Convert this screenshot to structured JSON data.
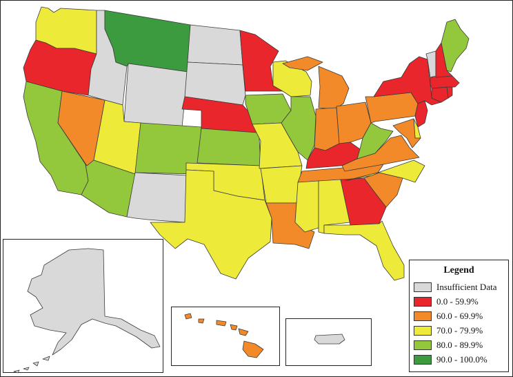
{
  "legend": {
    "title": "Legend",
    "items": [
      {
        "label": "Insufficient Data",
        "color": "#d9d9d9"
      },
      {
        "label": "0.0 - 59.9%",
        "color": "#e8262b"
      },
      {
        "label": "60.0 - 69.9%",
        "color": "#f28a2a"
      },
      {
        "label": "70.0 - 79.9%",
        "color": "#eeea3a"
      },
      {
        "label": "80.0 - 89.9%",
        "color": "#94c83c"
      },
      {
        "label": "90.0 - 100.0%",
        "color": "#3d9b3f"
      }
    ]
  },
  "states": [
    {
      "id": "WA",
      "cat": 3
    },
    {
      "id": "OR",
      "cat": 1
    },
    {
      "id": "CA",
      "cat": 4
    },
    {
      "id": "NV",
      "cat": 2
    },
    {
      "id": "ID",
      "cat": 0
    },
    {
      "id": "MT",
      "cat": 5
    },
    {
      "id": "WY",
      "cat": 0
    },
    {
      "id": "UT",
      "cat": 3
    },
    {
      "id": "AZ",
      "cat": 4
    },
    {
      "id": "CO",
      "cat": 4
    },
    {
      "id": "NM",
      "cat": 0
    },
    {
      "id": "ND",
      "cat": 0
    },
    {
      "id": "SD",
      "cat": 0
    },
    {
      "id": "NE",
      "cat": 1
    },
    {
      "id": "KS",
      "cat": 4
    },
    {
      "id": "OK",
      "cat": 3
    },
    {
      "id": "TX",
      "cat": 3
    },
    {
      "id": "MN",
      "cat": 1
    },
    {
      "id": "IA",
      "cat": 4
    },
    {
      "id": "MO",
      "cat": 3
    },
    {
      "id": "AR",
      "cat": 3
    },
    {
      "id": "LA",
      "cat": 2
    },
    {
      "id": "WI",
      "cat": 3
    },
    {
      "id": "IL",
      "cat": 4
    },
    {
      "id": "MI",
      "cat": 2
    },
    {
      "id": "IN",
      "cat": 2
    },
    {
      "id": "OH",
      "cat": 2
    },
    {
      "id": "KY",
      "cat": 1
    },
    {
      "id": "TN",
      "cat": 2
    },
    {
      "id": "MS",
      "cat": 3
    },
    {
      "id": "AL",
      "cat": 3
    },
    {
      "id": "GA",
      "cat": 1
    },
    {
      "id": "FL",
      "cat": 3
    },
    {
      "id": "SC",
      "cat": 2
    },
    {
      "id": "NC",
      "cat": 3
    },
    {
      "id": "VA",
      "cat": 2
    },
    {
      "id": "WV",
      "cat": 4
    },
    {
      "id": "PA",
      "cat": 2
    },
    {
      "id": "NY",
      "cat": 1
    },
    {
      "id": "NJ",
      "cat": 1
    },
    {
      "id": "DE",
      "cat": 3
    },
    {
      "id": "MD",
      "cat": 2
    },
    {
      "id": "CT",
      "cat": 1
    },
    {
      "id": "RI",
      "cat": 1
    },
    {
      "id": "MA",
      "cat": 1
    },
    {
      "id": "VT",
      "cat": 0
    },
    {
      "id": "NH",
      "cat": 1
    },
    {
      "id": "ME",
      "cat": 4
    },
    {
      "id": "AK",
      "cat": 0
    },
    {
      "id": "HI",
      "cat": 2
    },
    {
      "id": "PR",
      "cat": 0
    }
  ]
}
